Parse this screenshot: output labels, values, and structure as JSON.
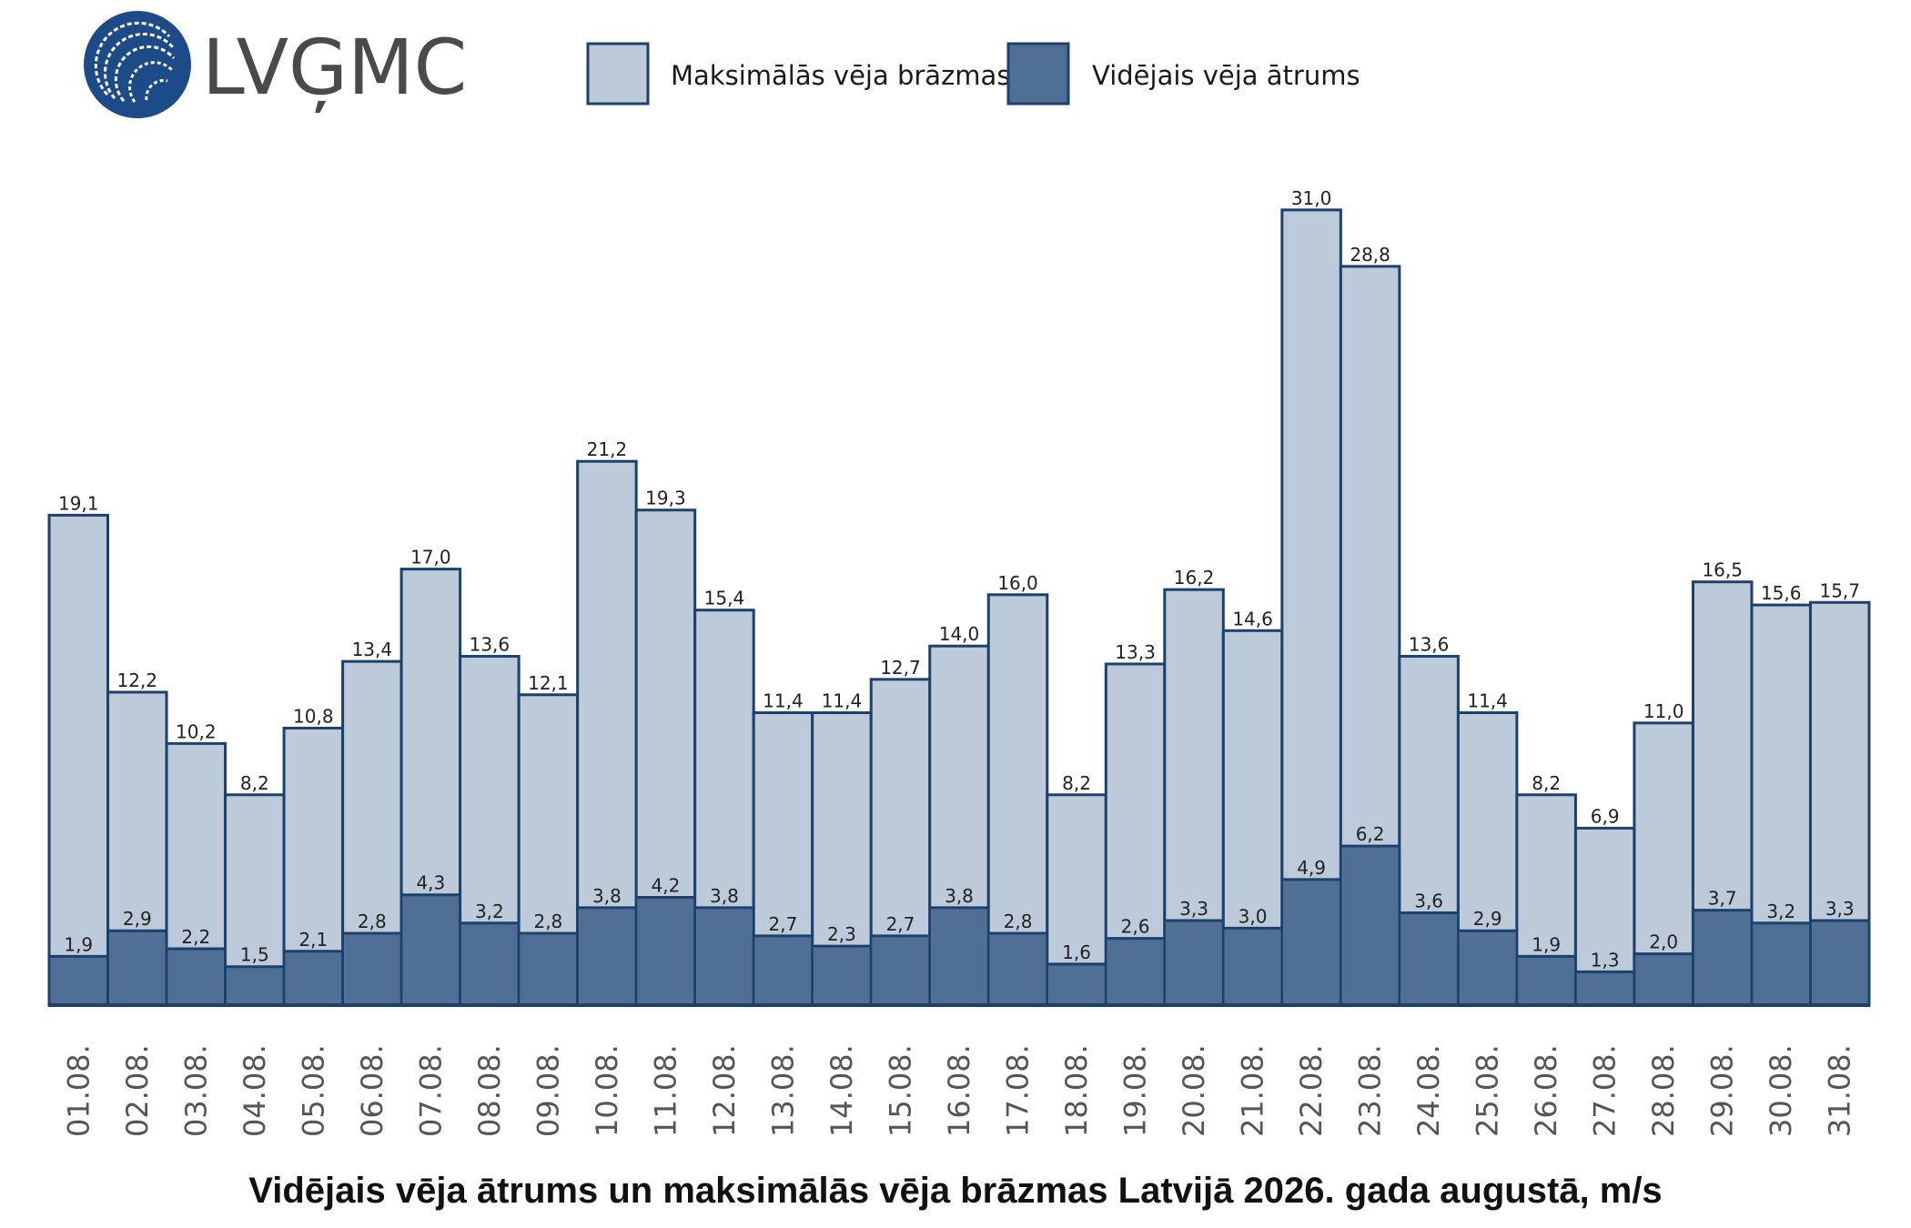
{
  "logo": {
    "text": "LVĢMC",
    "icon": "lvgmc-logo-icon"
  },
  "colors": {
    "gust_fill": "#bccad9",
    "mean_fill": "#4f7094",
    "outline": "#1b416c",
    "logo_blue": "#1c4b87"
  },
  "chart_data": {
    "type": "bar",
    "title": "Vidējais vēja ātrums un maksimālās vēja brāzmas Latvijā 2026. gada augustā, m/s",
    "xlabel": "",
    "ylabel": "",
    "ylim": [
      0,
      32
    ],
    "grid": false,
    "legend_position": "top",
    "categories": [
      "01.08.",
      "02.08.",
      "03.08.",
      "04.08.",
      "05.08.",
      "06.08.",
      "07.08.",
      "08.08.",
      "09.08.",
      "10.08.",
      "11.08.",
      "12.08.",
      "13.08.",
      "14.08.",
      "15.08.",
      "16.08.",
      "17.08.",
      "18.08.",
      "19.08.",
      "20.08.",
      "21.08.",
      "22.08.",
      "23.08.",
      "24.08.",
      "25.08.",
      "26.08.",
      "27.08.",
      "28.08.",
      "29.08.",
      "30.08.",
      "31.08."
    ],
    "series": [
      {
        "name": "Maksimālās vēja brāzmas",
        "values": [
          19.1,
          12.2,
          10.2,
          8.2,
          10.8,
          13.4,
          17.0,
          13.6,
          12.1,
          21.2,
          19.3,
          15.4,
          11.4,
          11.4,
          12.7,
          14.0,
          16.0,
          8.2,
          13.3,
          16.2,
          14.6,
          31.0,
          28.8,
          13.6,
          11.4,
          8.2,
          6.9,
          11.0,
          16.5,
          15.6,
          15.7
        ],
        "labels": [
          "19,1",
          "12,2",
          "10,2",
          "8,2",
          "10,8",
          "13,4",
          "17,0",
          "13,6",
          "12,1",
          "21,2",
          "19,3",
          "15,4",
          "11,4",
          "11,4",
          "12,7",
          "14,0",
          "16,0",
          "8,2",
          "13,3",
          "16,2",
          "14,6",
          "31,0",
          "28,8",
          "13,6",
          "11,4",
          "8,2",
          "6,9",
          "11,0",
          "16,5",
          "15,6",
          "15,7"
        ]
      },
      {
        "name": "Vidējais vēja ātrums",
        "values": [
          1.9,
          2.9,
          2.2,
          1.5,
          2.1,
          2.8,
          4.3,
          3.2,
          2.8,
          3.8,
          4.2,
          3.8,
          2.7,
          2.3,
          2.7,
          3.8,
          2.8,
          1.6,
          2.6,
          3.3,
          3.0,
          4.9,
          6.2,
          3.6,
          2.9,
          1.9,
          1.3,
          2.0,
          3.7,
          3.2,
          3.3
        ],
        "labels": [
          "1,9",
          "2,9",
          "2,2",
          "1,5",
          "2,1",
          "2,8",
          "4,3",
          "3,2",
          "2,8",
          "3,8",
          "4,2",
          "3,8",
          "2,7",
          "2,3",
          "2,7",
          "3,8",
          "2,8",
          "1,6",
          "2,6",
          "3,3",
          "3,0",
          "4,9",
          "6,2",
          "3,6",
          "2,9",
          "1,9",
          "1,3",
          "2,0",
          "3,7",
          "3,2",
          "3,3"
        ]
      }
    ]
  }
}
